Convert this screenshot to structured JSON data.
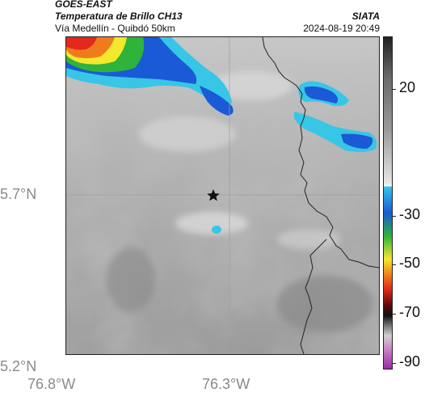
{
  "header": {
    "satellite": "GOES-EAST",
    "product": "Temperatura de Brillo CH13",
    "route": "Vía Medellín - Quibdó 50km",
    "organization": "SIATA",
    "datetime": "2024-08-19 20:49"
  },
  "axes": {
    "y_labels": [
      "5.7°N",
      "5.2°N"
    ],
    "x_labels": [
      "76.8°W",
      "76.3°W"
    ]
  },
  "colorbar": {
    "ticks": [
      "20",
      "-30",
      "-50",
      "-70",
      "-90"
    ]
  },
  "colors": {
    "cloud_gray": "#9a9a9a",
    "deep_convection_blue": "#1a5ad6",
    "cyan": "#37c6e6",
    "green": "#2fb33a",
    "yellow": "#f2e82e",
    "orange": "#f07b1c",
    "red": "#e2291c"
  },
  "map": {
    "marker_icon": "star-icon"
  }
}
